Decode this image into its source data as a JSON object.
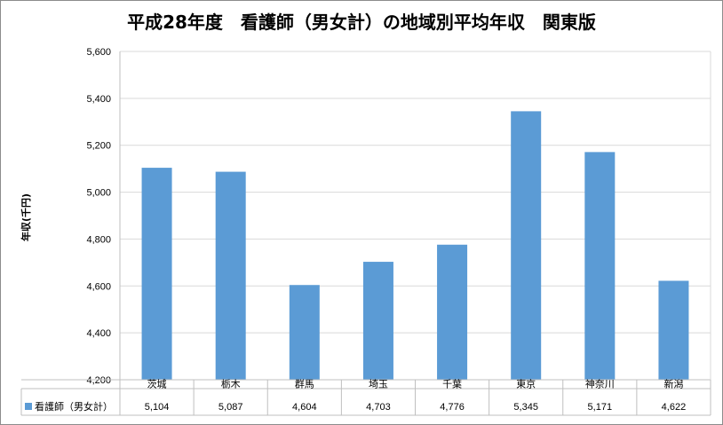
{
  "chart_data": {
    "type": "bar",
    "title": "平成28年度　看護師（男女計）の地域別平均年収　関東版",
    "ylabel": "年収(千円)",
    "xlabel": "",
    "categories": [
      "茨城",
      "栃木",
      "群馬",
      "埼玉",
      "千葉",
      "東京",
      "神奈川",
      "新潟"
    ],
    "series": [
      {
        "name": "看護師（男女計）",
        "values": [
          5104,
          5087,
          4604,
          4703,
          4776,
          5345,
          5171,
          4622
        ],
        "value_labels": [
          "5,104",
          "5,087",
          "4,604",
          "4,703",
          "4,776",
          "5,345",
          "5,171",
          "4,622"
        ],
        "color": "#5b9bd5"
      }
    ],
    "ylim": [
      4200,
      5600
    ],
    "yticks": [
      4200,
      4400,
      4600,
      4800,
      5000,
      5200,
      5400,
      5600
    ],
    "ytick_labels": [
      "4,200",
      "4,400",
      "4,600",
      "4,800",
      "5,000",
      "5,200",
      "5,400",
      "5,600"
    ],
    "grid": true,
    "legend": "data-table-left"
  }
}
